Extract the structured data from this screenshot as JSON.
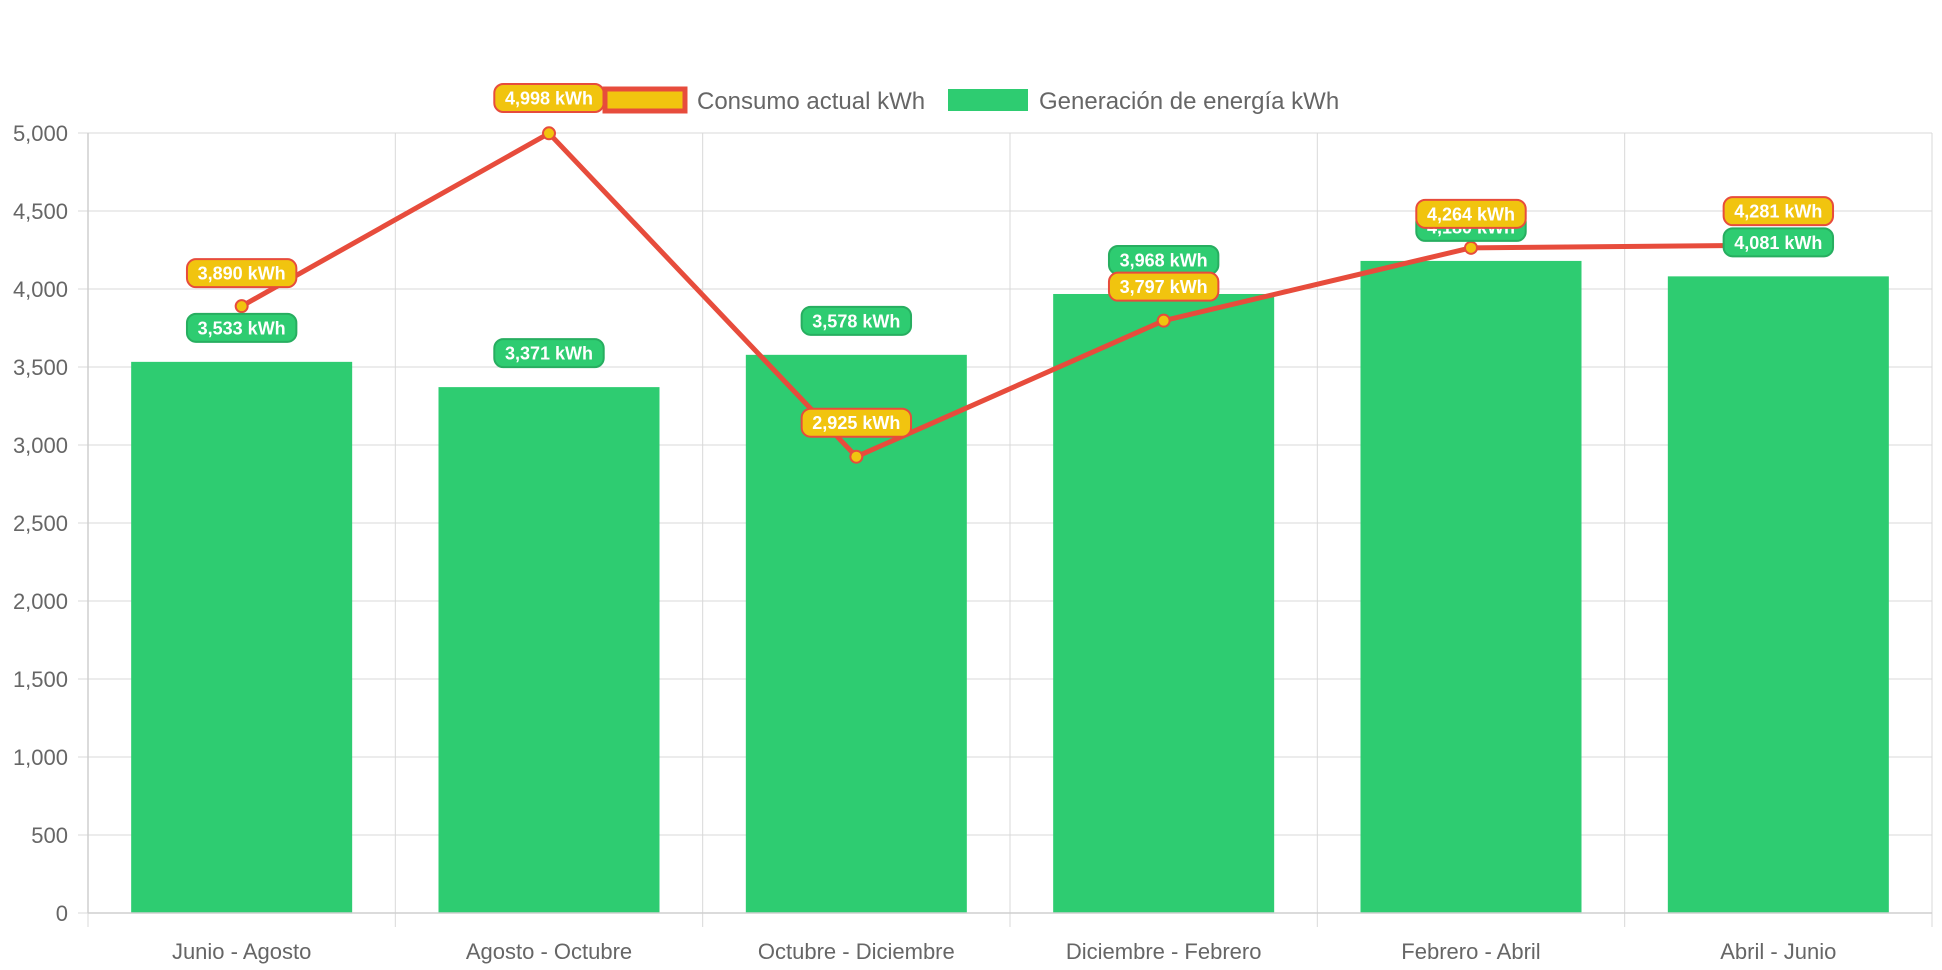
{
  "chart_data": {
    "type": "bar",
    "title": "",
    "xlabel": "",
    "ylabel": "",
    "categories": [
      "Junio - Agosto",
      "Agosto - Octubre",
      "Octubre - Diciembre",
      "Diciembre - Febrero",
      "Febrero - Abril",
      "Abril - Junio"
    ],
    "ylim": [
      0,
      5000
    ],
    "yticks": [
      0,
      500,
      1000,
      1500,
      2000,
      2500,
      3000,
      3500,
      4000,
      4500,
      5000
    ],
    "ytick_labels": [
      "0",
      "500",
      "1,000",
      "1,500",
      "2,000",
      "2,500",
      "3,000",
      "3,500",
      "4,000",
      "4,500",
      "5,000"
    ],
    "grid": true,
    "legend_position": "top",
    "series": [
      {
        "name": "Consumo actual kWh",
        "type": "line",
        "values": [
          3890,
          4998,
          2925,
          3797,
          4264,
          4281
        ],
        "labels": [
          "3,890 kWh",
          "4,998 kWh",
          "2,925 kWh",
          "3,797 kWh",
          "4,264 kWh",
          "4,281 kWh"
        ],
        "line_color": "#e74c3c",
        "point_color": "#f1c40f",
        "label_bg": "#f1c40f",
        "label_border": "#e74c3c"
      },
      {
        "name": "Generación de energía kWh",
        "type": "bar",
        "values": [
          3533,
          3371,
          3578,
          3968,
          4180,
          4081
        ],
        "labels": [
          "3,533 kWh",
          "3,371 kWh",
          "3,578 kWh",
          "3,968 kWh",
          "4,180 kWh",
          "4,081 kWh"
        ],
        "bar_color": "#2ecc71",
        "label_bg": "#2ecc71",
        "label_border": "#27ae60"
      }
    ]
  }
}
